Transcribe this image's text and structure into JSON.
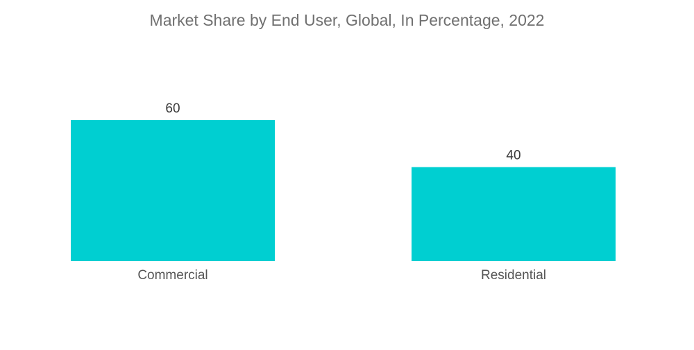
{
  "chart_data": {
    "type": "bar",
    "title": "Market Share by End User, Global, In Percentage, 2022",
    "categories": [
      "Commercial",
      "Residential"
    ],
    "values": [
      60,
      40
    ],
    "xlabel": "",
    "ylabel": "",
    "ylim": [
      0,
      60
    ],
    "grid": false,
    "legend": "none",
    "colors": {
      "bar": "#00cfd1"
    }
  }
}
